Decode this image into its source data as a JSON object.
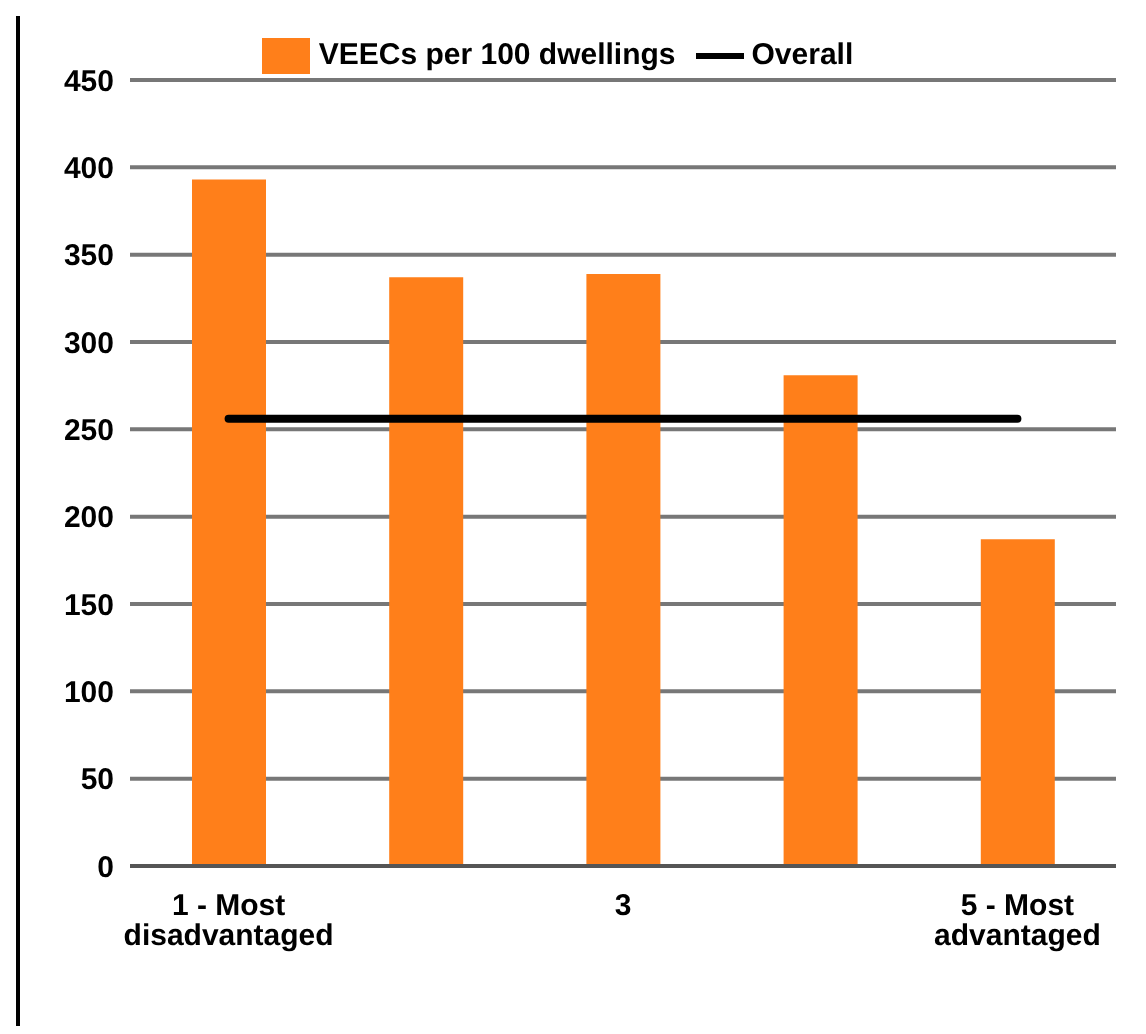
{
  "chart_data": {
    "type": "bar",
    "categories": [
      "1 - Most disadvantaged",
      null,
      "3",
      null,
      "5 - Most advantaged"
    ],
    "series": [
      {
        "name": "VEECs per 100 dwellings",
        "color": "#ff7f1a",
        "values": [
          393,
          337,
          339,
          281,
          187
        ]
      },
      {
        "name": "Overall",
        "type": "line",
        "color": "#000000",
        "values": [
          256,
          256,
          256,
          256,
          256
        ]
      }
    ],
    "ylim": [
      0,
      450
    ],
    "yticks": [
      0,
      50,
      100,
      150,
      200,
      250,
      300,
      350,
      400,
      450
    ],
    "grid": "y",
    "legend": "top",
    "marker": "none",
    "line_style": "solid"
  }
}
